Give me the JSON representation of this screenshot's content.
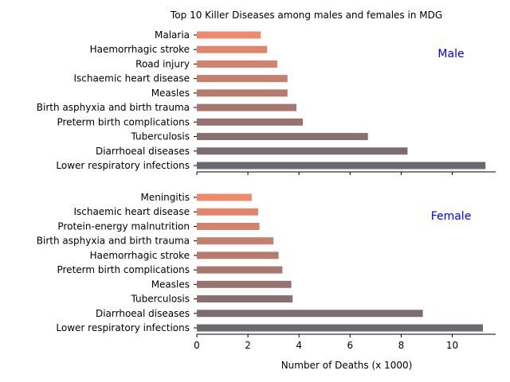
{
  "chart_data": {
    "type": "bar",
    "orientation": "horizontal",
    "title": "Top 10 Killer Diseases among males and females in MDG",
    "xlabel": "Number of Deaths (x 1000)",
    "xlim": [
      0,
      11.7
    ],
    "xticks": [
      "0",
      "2",
      "4",
      "6",
      "8",
      "10"
    ],
    "grid": false,
    "bar_color_top": "#f08a6c",
    "bar_color_bottom": "#6b6870",
    "panel_label_color": "#0000ff",
    "panels": [
      {
        "label": "Male",
        "categories": [
          "Malaria",
          "Haemorrhagic stroke",
          "Road injury",
          "Ischaemic heart disease",
          "Measles",
          "Birth asphyxia and birth trauma",
          "Preterm birth complications",
          "Tuberculosis",
          "Diarrhoeal diseases",
          "Lower respiratory infections"
        ],
        "values": [
          2.5,
          2.75,
          3.15,
          3.55,
          3.55,
          3.9,
          4.15,
          6.7,
          8.25,
          11.3
        ]
      },
      {
        "label": "Female",
        "categories": [
          "Meningitis",
          "Ischaemic heart disease",
          "Protein-energy malnutrition",
          "Birth asphyxia and birth trauma",
          "Haemorrhagic stroke",
          "Preterm birth complications",
          "Measles",
          "Tuberculosis",
          "Diarrhoeal diseases",
          "Lower respiratory infections"
        ],
        "values": [
          2.15,
          2.4,
          2.45,
          3.0,
          3.2,
          3.35,
          3.7,
          3.75,
          8.85,
          11.2
        ]
      }
    ]
  }
}
